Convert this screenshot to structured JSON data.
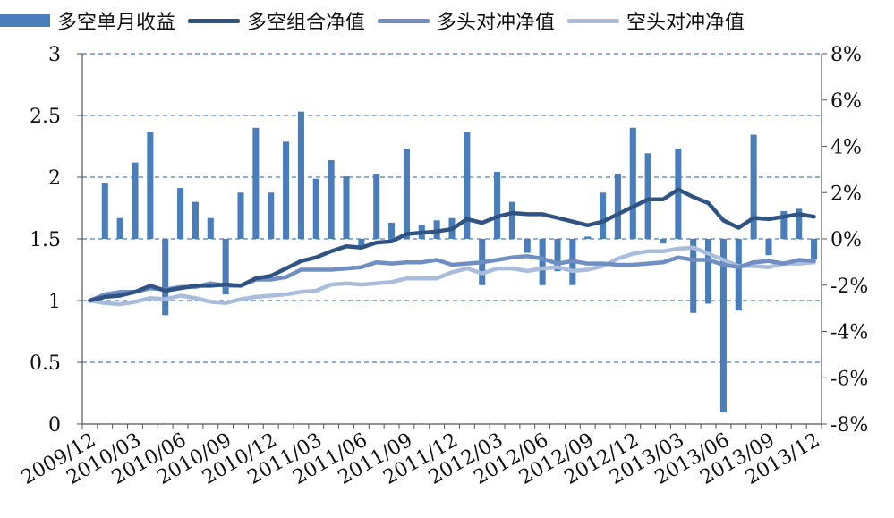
{
  "chart_data": {
    "type": "bar+line",
    "title": "",
    "legend": {
      "position": "top",
      "items": [
        {
          "name": "多空单月收益",
          "kind": "bar"
        },
        {
          "name": "多空组合净值",
          "kind": "line"
        },
        {
          "name": "多头对冲净值",
          "kind": "line"
        },
        {
          "name": "空头对冲净值",
          "kind": "line"
        }
      ]
    },
    "x_tick_labels": [
      "2009/12",
      "2010/03",
      "2010/06",
      "2010/09",
      "2010/12",
      "2011/03",
      "2011/06",
      "2011/09",
      "2011/12",
      "2012/03",
      "2012/06",
      "2012/09",
      "2012/12",
      "2013/03",
      "2013/06",
      "2013/09",
      "2013/12"
    ],
    "y_left": {
      "range": [
        0,
        3
      ],
      "ticks": [
        "0",
        "0.5",
        "1",
        "1.5",
        "2",
        "2.5",
        "3"
      ]
    },
    "y_right": {
      "range": [
        -8,
        8
      ],
      "unit": "%",
      "ticks": [
        "-8%",
        "-6%",
        "-4%",
        "-2%",
        "0%",
        "2%",
        "4%",
        "6%",
        "8%"
      ]
    },
    "grid": "horizontal dashed",
    "colors": {
      "bar": "#4a7ebb",
      "long_short": "#2f5483",
      "long_hedge": "#6f8fc2",
      "short_hedge": "#a9bcdc"
    },
    "months": [
      "2009/12",
      "2010/01",
      "2010/02",
      "2010/03",
      "2010/04",
      "2010/05",
      "2010/06",
      "2010/07",
      "2010/08",
      "2010/09",
      "2010/10",
      "2010/11",
      "2010/12",
      "2011/01",
      "2011/02",
      "2011/03",
      "2011/04",
      "2011/05",
      "2011/06",
      "2011/07",
      "2011/08",
      "2011/09",
      "2011/10",
      "2011/11",
      "2011/12",
      "2012/01",
      "2012/02",
      "2012/03",
      "2012/04",
      "2012/05",
      "2012/06",
      "2012/07",
      "2012/08",
      "2012/09",
      "2012/10",
      "2012/11",
      "2012/12",
      "2013/01",
      "2013/02",
      "2013/03",
      "2013/04",
      "2013/05",
      "2013/06",
      "2013/07",
      "2013/08",
      "2013/09",
      "2013/10",
      "2013/11",
      "2013/12"
    ],
    "series": [
      {
        "name": "多空单月收益",
        "axis": "right",
        "values": [
          null,
          2.4,
          0.9,
          3.3,
          4.6,
          -3.3,
          2.2,
          1.6,
          0.9,
          -2.4,
          2.0,
          4.8,
          2.0,
          4.2,
          5.5,
          2.6,
          3.4,
          2.7,
          -0.3,
          2.8,
          0.7,
          3.9,
          0.6,
          0.8,
          0.9,
          4.6,
          -2.0,
          2.9,
          1.6,
          -0.6,
          -2.0,
          -1.4,
          -2.0,
          0.1,
          2.0,
          2.8,
          4.8,
          3.7,
          -0.2,
          3.9,
          -3.2,
          -2.8,
          -7.5,
          -3.1,
          4.5,
          -0.7,
          1.2,
          1.3,
          -0.9
        ]
      },
      {
        "name": "多空组合净值",
        "axis": "left",
        "values": [
          1.0,
          1.03,
          1.04,
          1.07,
          1.12,
          1.08,
          1.1,
          1.12,
          1.12,
          1.13,
          1.12,
          1.18,
          1.2,
          1.26,
          1.32,
          1.35,
          1.4,
          1.44,
          1.43,
          1.47,
          1.48,
          1.54,
          1.55,
          1.56,
          1.58,
          1.66,
          1.63,
          1.68,
          1.71,
          1.7,
          1.7,
          1.67,
          1.64,
          1.61,
          1.64,
          1.7,
          1.76,
          1.82,
          1.82,
          1.9,
          1.84,
          1.79,
          1.65,
          1.59,
          1.67,
          1.66,
          1.68,
          1.7,
          1.68
        ]
      },
      {
        "name": "多头对冲净值",
        "axis": "left",
        "values": [
          1.0,
          1.05,
          1.07,
          1.07,
          1.1,
          1.09,
          1.11,
          1.11,
          1.14,
          1.12,
          1.12,
          1.17,
          1.17,
          1.19,
          1.25,
          1.25,
          1.25,
          1.26,
          1.27,
          1.31,
          1.3,
          1.31,
          1.31,
          1.33,
          1.29,
          1.3,
          1.31,
          1.33,
          1.35,
          1.36,
          1.34,
          1.3,
          1.32,
          1.3,
          1.3,
          1.29,
          1.29,
          1.3,
          1.31,
          1.35,
          1.33,
          1.33,
          1.29,
          1.27,
          1.31,
          1.32,
          1.3,
          1.33,
          1.32
        ]
      },
      {
        "name": "空头对冲净值",
        "axis": "left",
        "values": [
          1.0,
          0.98,
          0.97,
          0.99,
          1.02,
          1.01,
          1.04,
          1.02,
          0.99,
          0.98,
          1.01,
          1.03,
          1.04,
          1.05,
          1.07,
          1.08,
          1.13,
          1.14,
          1.13,
          1.14,
          1.15,
          1.18,
          1.18,
          1.18,
          1.23,
          1.26,
          1.22,
          1.26,
          1.26,
          1.24,
          1.26,
          1.27,
          1.24,
          1.25,
          1.28,
          1.34,
          1.38,
          1.4,
          1.4,
          1.42,
          1.43,
          1.38,
          1.33,
          1.28,
          1.28,
          1.27,
          1.3,
          1.3,
          1.31
        ]
      }
    ]
  }
}
